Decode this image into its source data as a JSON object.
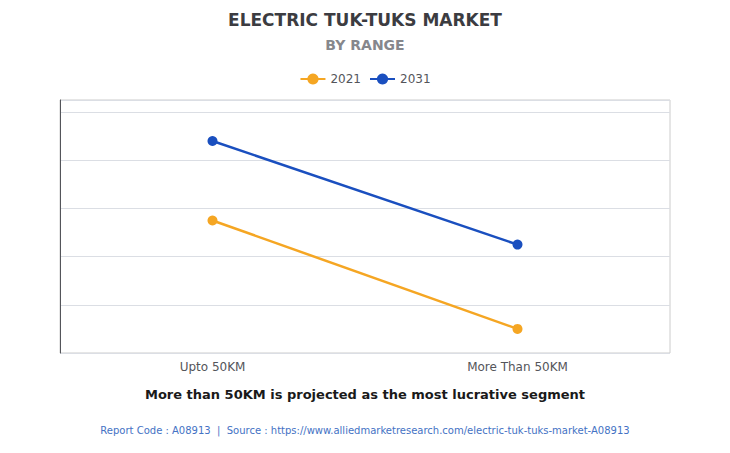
{
  "chart_data": {
    "type": "line",
    "title": "ELECTRIC TUK-TUKS MARKET",
    "subtitle": "BY RANGE",
    "categories": [
      "Upto 50KM",
      "More Than 50KM"
    ],
    "series": [
      {
        "name": "2021",
        "color": "#F5A623",
        "values": [
          0.55,
          0.1
        ]
      },
      {
        "name": "2031",
        "color": "#1A4FBF",
        "values": [
          0.88,
          0.45
        ]
      }
    ],
    "ylim": [
      0.0,
      1.05
    ],
    "yticks": [
      0.0,
      0.2,
      0.4,
      0.6,
      0.8,
      1.0
    ],
    "grid": true,
    "legend": "top",
    "tick_labels": "x",
    "marker": "circle",
    "annotations": [
      "More than 50KM is projected as the most lucrative segment",
      "Report Code : A08913  |  Source : https://www.alliedmarketresearch.com/electric-tuk-tuks-market-A08913"
    ]
  }
}
